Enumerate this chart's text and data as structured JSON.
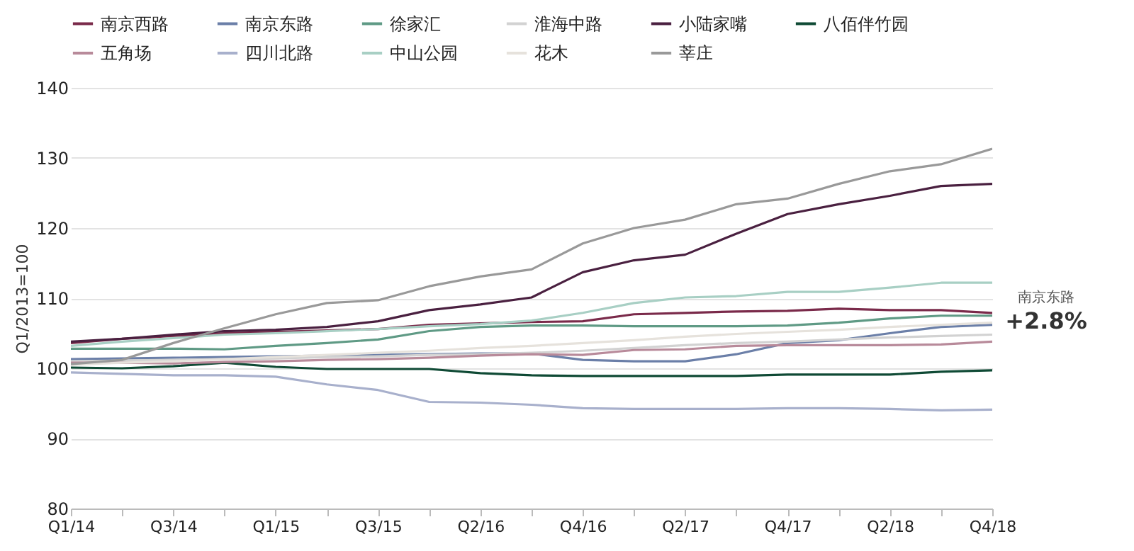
{
  "chart_data": {
    "type": "line",
    "ylabel": "Q1/2013=100",
    "categories": [
      "Q1/14",
      null,
      "Q3/14",
      null,
      "Q1/15",
      null,
      "Q3/15",
      null,
      "Q2/16",
      null,
      "Q4/16",
      null,
      "Q2/17",
      null,
      "Q4/17",
      null,
      "Q2/18",
      null,
      "Q4/18"
    ],
    "ylim": [
      80,
      140
    ],
    "yticks": [
      80,
      90,
      100,
      110,
      120,
      130,
      140
    ],
    "grid": "y",
    "legend": "top",
    "annotations": [
      "南京东路",
      "+2.8%"
    ],
    "series": [
      {
        "name": "南京西路",
        "color": "#7a2a4a",
        "values": [
          103.6,
          104.2,
          104.6,
          105,
          105.2,
          105.4,
          105.6,
          106.2,
          106.4,
          106.6,
          106.7,
          107.7,
          107.9,
          108.1,
          108.2,
          108.5,
          108.3,
          108.3,
          107.9
        ]
      },
      {
        "name": "南京东路",
        "color": "#6b7fa8",
        "values": [
          101.3,
          101.4,
          101.5,
          101.6,
          101.7,
          101.8,
          101.9,
          102,
          102.1,
          102.1,
          101.2,
          101,
          101,
          102,
          103.6,
          104,
          105,
          105.9,
          106.2
        ]
      },
      {
        "name": "徐家汇",
        "color": "#5f9a85",
        "values": [
          102.8,
          102.8,
          102.8,
          102.7,
          103.2,
          103.6,
          104.1,
          105.3,
          105.9,
          106.1,
          106.1,
          106,
          106,
          106,
          106.1,
          106.5,
          107.1,
          107.5,
          107.5
        ]
      },
      {
        "name": "淮海中路",
        "color": "#d2d2d2",
        "values": [
          101,
          101.1,
          101.2,
          101.3,
          101.4,
          101.6,
          101.7,
          101.9,
          102,
          102.2,
          102.5,
          102.9,
          103.3,
          103.6,
          103.8,
          104.1,
          104.4,
          104.6,
          104.8
        ]
      },
      {
        "name": "小陆家嘴",
        "color": "#4a2040",
        "values": [
          103.8,
          104.2,
          104.8,
          105.3,
          105.5,
          105.9,
          106.7,
          108.3,
          109.1,
          110.1,
          113.7,
          115.4,
          116.2,
          119.2,
          122,
          123.4,
          124.6,
          126,
          126.3
        ]
      },
      {
        "name": "八佰伴竹园",
        "color": "#0f4a35",
        "values": [
          100.1,
          100,
          100.3,
          100.8,
          100.2,
          99.9,
          99.9,
          99.9,
          99.3,
          99,
          98.9,
          98.9,
          98.9,
          98.9,
          99.1,
          99.1,
          99.1,
          99.5,
          99.7
        ]
      },
      {
        "name": "五角场",
        "color": "#b88a9a",
        "values": [
          100.8,
          100.8,
          100.7,
          100.9,
          101,
          101.2,
          101.3,
          101.5,
          101.8,
          102,
          101.9,
          102.6,
          102.7,
          103.2,
          103.3,
          103.3,
          103.3,
          103.4,
          103.8
        ]
      },
      {
        "name": "四川北路",
        "color": "#a8b0cc",
        "values": [
          99.4,
          99.2,
          99,
          99,
          98.8,
          97.7,
          96.9,
          95.2,
          95.1,
          94.8,
          94.3,
          94.2,
          94.2,
          94.2,
          94.3,
          94.3,
          94.2,
          94,
          94.1
        ]
      },
      {
        "name": "中山公园",
        "color": "#a8cfc4",
        "values": [
          103.2,
          103.8,
          104.3,
          104.8,
          105,
          105.3,
          105.6,
          106,
          106.3,
          106.8,
          107.9,
          109.3,
          110.1,
          110.3,
          110.9,
          110.9,
          111.5,
          112.2,
          112.2
        ]
      },
      {
        "name": "花木",
        "color": "#e6e2dc",
        "values": [
          100.5,
          100.8,
          101,
          101.3,
          101.6,
          101.9,
          102.2,
          102.5,
          102.9,
          103.2,
          103.6,
          104,
          104.5,
          104.9,
          105.2,
          105.5,
          105.9,
          106.2,
          106.5
        ]
      },
      {
        "name": "莘庄",
        "color": "#999999",
        "values": [
          100.6,
          101.2,
          103.6,
          105.7,
          107.7,
          109.3,
          109.7,
          111.7,
          113.1,
          114.1,
          117.8,
          120,
          121.2,
          123.4,
          124.2,
          126.3,
          128.1,
          129.1,
          131.3
        ]
      }
    ]
  }
}
